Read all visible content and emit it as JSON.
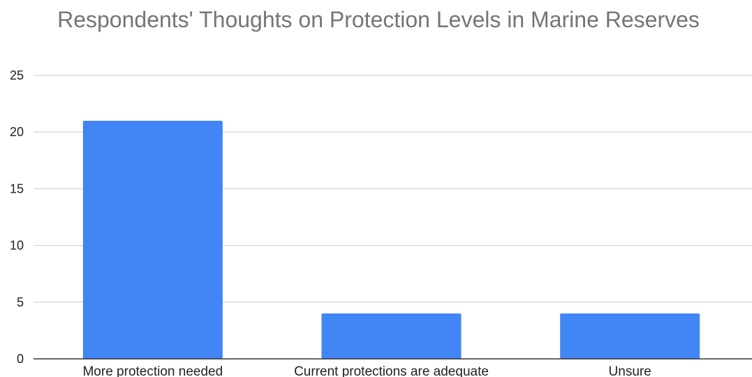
{
  "chart_data": {
    "type": "bar",
    "title": "Respondents' Thoughts on Protection Levels in Marine Reserves",
    "xlabel": "",
    "ylabel": "",
    "categories": [
      "More protection needed",
      "Current protections are adequate",
      "Unsure"
    ],
    "values": [
      21,
      4,
      4
    ],
    "ylim": [
      0,
      25
    ],
    "yticks": [
      "0",
      "5",
      "10",
      "15",
      "20",
      "25"
    ],
    "grid": true,
    "legend": "none",
    "colors": {
      "bar": "#4285F4",
      "grid": "#cccccc",
      "axis": "#333333",
      "title": "#757575",
      "tick_text": "#222222"
    }
  }
}
